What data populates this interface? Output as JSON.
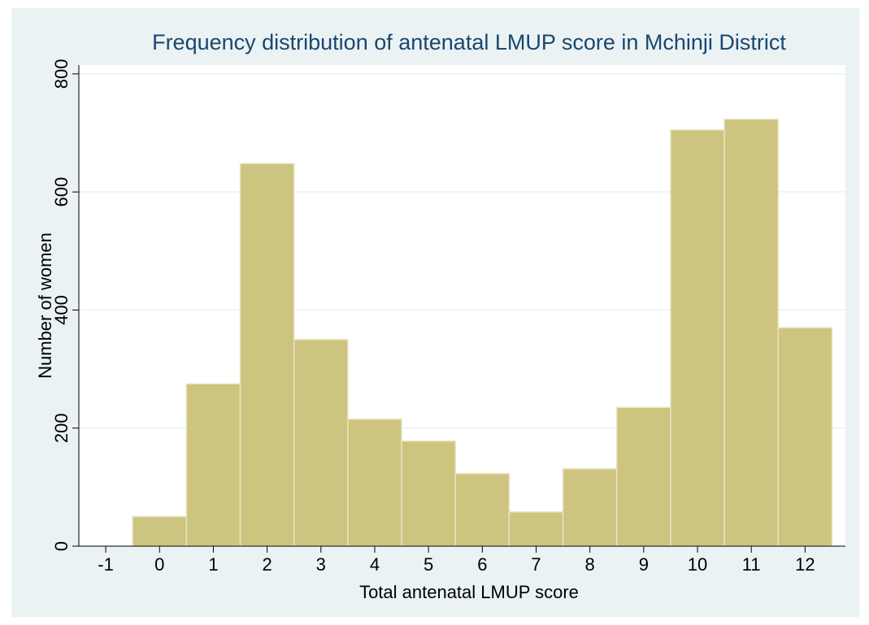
{
  "chart_data": {
    "type": "histogram",
    "title": "Frequency distribution of antenatal LMUP score in Mchinji District",
    "x_label": "Total antenatal LMUP score",
    "y_label": "Number of women",
    "bins": [
      -0.5,
      0.5,
      1.5,
      2.5,
      3.5,
      4.5,
      5.5,
      6.5,
      7.5,
      8.5,
      9.5,
      10.5,
      11.5,
      12.5
    ],
    "counts": [
      50,
      275,
      648,
      350,
      215,
      178,
      123,
      58,
      131,
      235,
      705,
      723,
      370
    ],
    "color": "#cdc47f",
    "xlim": [
      -1.5,
      12.75
    ],
    "xticks": [
      -1,
      0,
      1,
      2,
      3,
      4,
      5,
      6,
      7,
      8,
      9,
      10,
      11,
      12
    ],
    "ylim": [
      0,
      815
    ],
    "yticks": [
      0,
      200,
      400,
      600,
      800
    ],
    "grid": true
  }
}
